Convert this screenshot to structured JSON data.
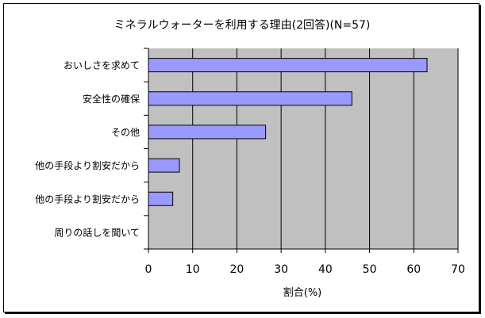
{
  "chart_data": {
    "type": "bar",
    "orientation": "horizontal",
    "title": "ミネラルウォーターを利用する理由(2回答)(N=57)",
    "xlabel": "割合(%)",
    "ylabel": "",
    "categories": [
      "おいしさを求めて",
      "安全性の確保",
      "その他",
      "他の手段より割安だから",
      "他の手段より割安だから",
      "周りの話しを聞いて"
    ],
    "values": [
      63,
      46,
      26.5,
      7,
      5.5,
      0
    ],
    "xlim": [
      0,
      70
    ],
    "xticks": [
      "0",
      "10",
      "20",
      "30",
      "40",
      "50",
      "60",
      "70"
    ],
    "grid": true,
    "legend": "none",
    "colors": {
      "bar_fill": "#9999ff",
      "bar_stroke": "#000000",
      "plot_bg": "#c0c0c0",
      "gridline": "#000000"
    }
  }
}
